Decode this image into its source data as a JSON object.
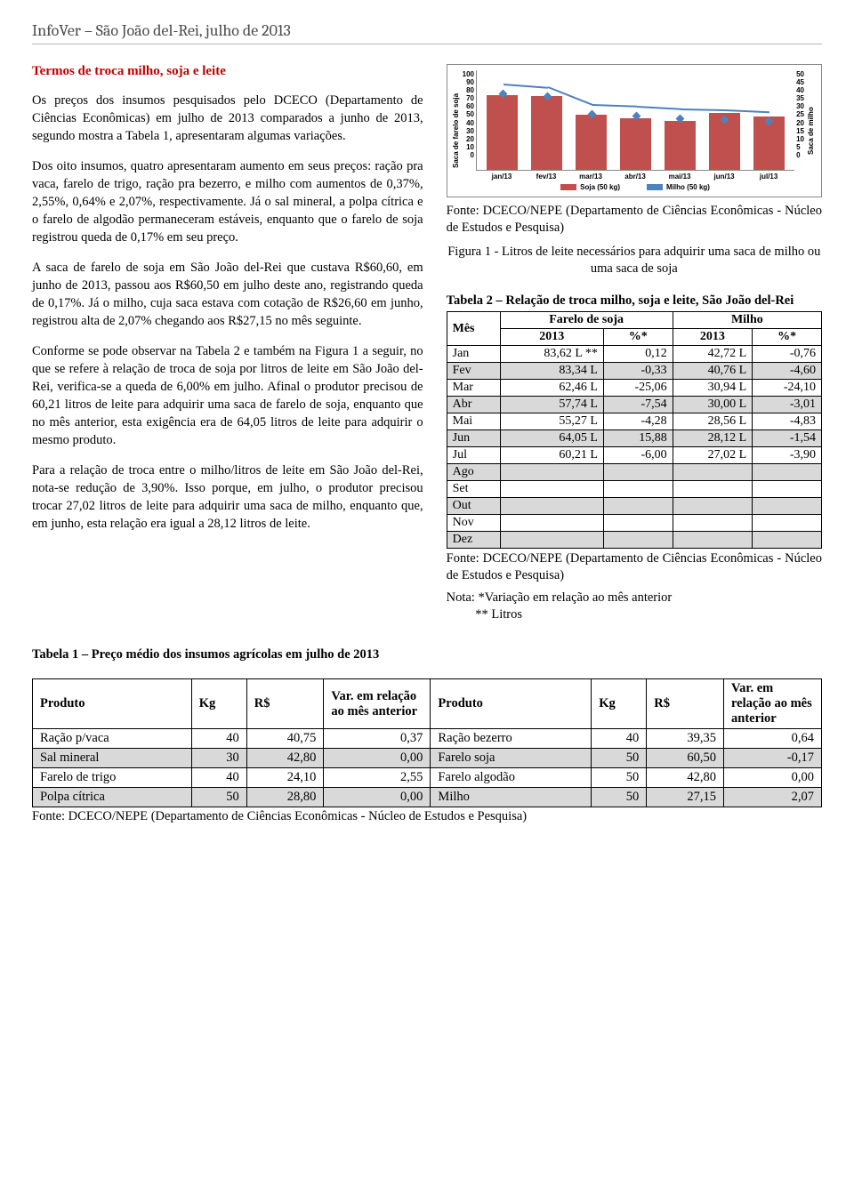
{
  "header": {
    "title": "InfoVer – São João del-Rei, julho de 2013"
  },
  "left": {
    "section_title": "Termos de troca milho, soja e leite",
    "p1": "Os preços dos insumos pesquisados pelo DCECO (Departamento de Ciências Econômicas) em julho de 2013 comparados a junho de 2013, segundo mostra a Tabela 1, apresentaram algumas variações.",
    "p2": "Dos oito insumos, quatro apresentaram aumento em seus preços: ração pra vaca, farelo de trigo, ração pra bezerro, e milho com aumentos de 0,37%, 2,55%, 0,64% e 2,07%, respectivamente. Já o sal mineral, a polpa cítrica e o farelo de algodão permaneceram estáveis, enquanto que o farelo de soja registrou queda de 0,17% em seu preço.",
    "p3": "A saca de farelo de soja em São João del-Rei que custava R$60,60, em junho de 2013, passou aos R$60,50 em julho deste ano, registrando queda de 0,17%. Já o milho, cuja saca estava com cotação de R$26,60 em junho, registrou alta de 2,07% chegando aos R$27,15 no mês seguinte.",
    "p4": "Conforme se pode observar na Tabela 2 e também na Figura 1 a seguir, no que se refere à relação de troca de soja por litros de leite em São João del-Rei, verifica-se a queda de 6,00% em julho. Afinal o produtor precisou de 60,21 litros de leite para adquirir uma saca de farelo de soja, enquanto que no mês anterior, esta exigência era de 64,05 litros de leite para adquirir o mesmo produto.",
    "p5": "Para a relação de troca entre o milho/litros de leite em São João del-Rei, nota-se redução de 3,90%. Isso porque, em julho, o produtor precisou trocar 27,02 litros de leite para adquirir uma saca de milho, enquanto que, em junho, esta relação era igual a 28,12 litros de leite."
  },
  "chart": {
    "type": "bar+line",
    "ylabel_left": "Saca de farelo de soja",
    "ylabel_right": "Saca de milho",
    "yticks_left": [
      "100",
      "90",
      "80",
      "70",
      "60",
      "50",
      "40",
      "30",
      "20",
      "10",
      "0"
    ],
    "yticks_right": [
      "50",
      "45",
      "40",
      "35",
      "30",
      "25",
      "20",
      "15",
      "10",
      "5",
      "0"
    ],
    "ylim_left": 100,
    "ylim_right": 50,
    "categories": [
      "jan/13",
      "fev/13",
      "mar/13",
      "abr/13",
      "mai/13",
      "jun/13",
      "jul/13"
    ],
    "bar_values": [
      83.6,
      83.3,
      62.5,
      57.7,
      55.3,
      64.1,
      60.2
    ],
    "line_values": [
      42.7,
      40.8,
      30.9,
      30.0,
      28.6,
      28.1,
      27.0
    ],
    "bar_color": "#c0504d",
    "line_color": "#4f81bd",
    "legend_bar": "Soja (50 kg)",
    "legend_line": "Milho (50 kg)"
  },
  "right": {
    "source1": "Fonte: DCECO/NEPE (Departamento de Ciências Econômicas - Núcleo de Estudos e Pesquisa)",
    "fig_caption": "Figura 1 - Litros de leite necessários para adquirir uma saca de milho ou uma saca de soja",
    "t2_title": "Tabela 2 – Relação de troca milho, soja e leite, São João del-Rei",
    "t2_headers": {
      "mes": "Mês",
      "soja": "Farelo de soja",
      "milho": "Milho",
      "y": "2013",
      "pct": "%*"
    },
    "t2_rows": [
      {
        "m": "Jan",
        "s": "83,62 L **",
        "sp": "0,12",
        "mi": "42,72 L",
        "mp": "-0,76",
        "shade": false
      },
      {
        "m": "Fev",
        "s": "83,34 L",
        "sp": "-0,33",
        "mi": "40,76 L",
        "mp": "-4,60",
        "shade": true
      },
      {
        "m": "Mar",
        "s": "62,46 L",
        "sp": "-25,06",
        "mi": "30,94 L",
        "mp": "-24,10",
        "shade": false
      },
      {
        "m": "Abr",
        "s": "57,74 L",
        "sp": "-7,54",
        "mi": "30,00 L",
        "mp": "-3,01",
        "shade": true
      },
      {
        "m": "Mai",
        "s": "55,27 L",
        "sp": "-4,28",
        "mi": "28,56 L",
        "mp": "-4,83",
        "shade": false
      },
      {
        "m": "Jun",
        "s": "64,05 L",
        "sp": "15,88",
        "mi": "28,12 L",
        "mp": "-1,54",
        "shade": true
      },
      {
        "m": "Jul",
        "s": "60,21 L",
        "sp": "-6,00",
        "mi": "27,02 L",
        "mp": "-3,90",
        "shade": false
      }
    ],
    "t2_empty": [
      "Ago",
      "Set",
      "Out",
      "Nov",
      "Dez"
    ],
    "source2": "Fonte: DCECO/NEPE (Departamento de Ciências Econômicas - Núcleo de Estudos e Pesquisa)",
    "note": "Nota: *Variação em relação ao mês anterior",
    "note2": "** Litros"
  },
  "t1": {
    "title": "Tabela 1 – Preço médio dos insumos agrícolas em julho de 2013",
    "h": {
      "prod": "Produto",
      "kg": "Kg",
      "rs": "R$",
      "var": "Var. em relação ao mês anterior",
      "var2": "Var. em relação ao mês anterior"
    },
    "rows": [
      {
        "shade": false,
        "l": [
          "Ração p/vaca",
          "40",
          "40,75",
          "0,37"
        ],
        "r": [
          "Ração bezerro",
          "40",
          "39,35",
          "0,64"
        ]
      },
      {
        "shade": true,
        "l": [
          "Sal mineral",
          "30",
          "42,80",
          "0,00"
        ],
        "r": [
          "Farelo soja",
          "50",
          "60,50",
          "-0,17"
        ]
      },
      {
        "shade": false,
        "l": [
          "Farelo de trigo",
          "40",
          "24,10",
          "2,55"
        ],
        "r": [
          "Farelo algodão",
          "50",
          "42,80",
          "0,00"
        ]
      },
      {
        "shade": true,
        "l": [
          "Polpa cítrica",
          "50",
          "28,80",
          "0,00"
        ],
        "r": [
          "Milho",
          "50",
          "27,15",
          "2,07"
        ]
      }
    ],
    "source": "Fonte: DCECO/NEPE (Departamento de Ciências Econômicas - Núcleo de Estudos e Pesquisa)"
  }
}
